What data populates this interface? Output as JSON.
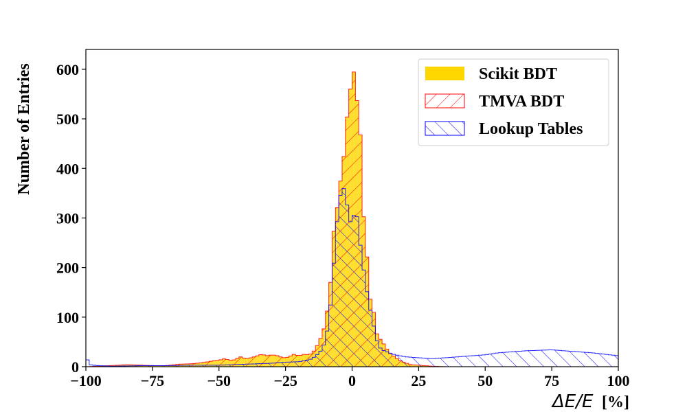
{
  "chart_data": {
    "type": "histogram",
    "xlabel_math": "ΔE/E",
    "xlabel_unit": "[%]",
    "ylabel": "Number of Entries",
    "xlim": [
      -100,
      100
    ],
    "ylim": [
      0,
      640
    ],
    "x_ticks": [
      -100,
      -75,
      -50,
      -25,
      0,
      25,
      50,
      75,
      100
    ],
    "x_tick_labels": [
      "−100",
      "−75",
      "−50",
      "−25",
      "0",
      "25",
      "50",
      "75",
      "100"
    ],
    "y_ticks": [
      0,
      100,
      200,
      300,
      400,
      500,
      600
    ],
    "y_tick_labels": [
      "0",
      "100",
      "200",
      "300",
      "400",
      "500",
      "600"
    ],
    "bin_edges_range": [
      -100,
      100
    ],
    "bin_width": 1.25,
    "legend_position": "top-right",
    "series": [
      {
        "name": "Scikit BDT",
        "style": "filled",
        "color": "#FFD700",
        "x": [
          -99.4,
          -88,
          -84,
          -74,
          -70,
          -65,
          -60,
          -55,
          -52,
          -50,
          -48,
          -45,
          -42,
          -40,
          -38,
          -36,
          -34,
          -32,
          -30,
          -28,
          -26,
          -24,
          -22,
          -20,
          -18,
          -16,
          -14,
          -12,
          -10,
          -9,
          -8,
          -7,
          -6,
          -5,
          -4,
          -3,
          -2,
          -1,
          0,
          1,
          2,
          3,
          4,
          5,
          6,
          7,
          8,
          9,
          10,
          12,
          14,
          16,
          18,
          20,
          22,
          25,
          30,
          35
        ],
        "y": [
          0,
          3,
          4,
          2,
          2,
          5,
          6,
          9,
          12,
          13,
          16,
          12,
          20,
          16,
          18,
          21,
          25,
          22,
          24,
          22,
          18,
          19,
          25,
          22,
          25,
          24,
          33,
          55,
          86,
          128,
          176,
          270,
          297,
          360,
          383,
          430,
          500,
          530,
          610,
          585,
          530,
          490,
          310,
          290,
          180,
          130,
          115,
          70,
          60,
          45,
          28,
          20,
          12,
          8,
          4,
          3,
          1,
          0
        ]
      },
      {
        "name": "TMVA BDT",
        "style": "hatched-step",
        "color": "#FF0000",
        "x": [
          -99.4,
          -88,
          -84,
          -74,
          -70,
          -65,
          -60,
          -55,
          -52,
          -50,
          -48,
          -45,
          -42,
          -40,
          -38,
          -36,
          -34,
          -32,
          -30,
          -28,
          -26,
          -24,
          -22,
          -20,
          -18,
          -16,
          -14,
          -12,
          -10,
          -9,
          -8,
          -7,
          -6,
          -5,
          -4,
          -3,
          -2,
          -1,
          0,
          1,
          2,
          3,
          4,
          5,
          6,
          7,
          8,
          9,
          10,
          12,
          14,
          16,
          18,
          20,
          22,
          25,
          30,
          35
        ],
        "y": [
          0,
          3,
          4,
          2,
          2,
          5,
          6,
          9,
          12,
          13,
          16,
          12,
          20,
          16,
          18,
          21,
          25,
          22,
          24,
          22,
          18,
          19,
          25,
          22,
          25,
          24,
          33,
          55,
          86,
          128,
          176,
          270,
          297,
          360,
          383,
          430,
          500,
          530,
          610,
          585,
          530,
          490,
          310,
          290,
          180,
          130,
          115,
          70,
          60,
          45,
          28,
          20,
          12,
          8,
          4,
          3,
          1,
          0
        ]
      },
      {
        "name": "Lookup Tables",
        "style": "hatched-step",
        "color": "#0000FF",
        "x": [
          -100,
          -99,
          -95,
          -90,
          -80,
          -70,
          -60,
          -50,
          -45,
          -40,
          -35,
          -30,
          -25,
          -20,
          -18,
          -16,
          -14,
          -12,
          -10,
          -9,
          -8,
          -7,
          -6,
          -5,
          -4,
          -3,
          -2,
          -1,
          0,
          1,
          2,
          3,
          4,
          5,
          6,
          7,
          8,
          9,
          10,
          12,
          14,
          16,
          18,
          20,
          25,
          30,
          35,
          40,
          45,
          50,
          55,
          60,
          65,
          70,
          75,
          80,
          85,
          90,
          95,
          100
        ],
        "y": [
          30,
          4,
          2,
          1,
          2,
          2,
          3,
          3,
          4,
          5,
          6,
          7,
          9,
          10,
          12,
          14,
          20,
          30,
          50,
          85,
          130,
          200,
          270,
          330,
          355,
          360,
          330,
          300,
          280,
          320,
          300,
          250,
          210,
          170,
          140,
          110,
          85,
          60,
          40,
          32,
          28,
          24,
          22,
          20,
          18,
          16,
          18,
          20,
          22,
          24,
          28,
          30,
          32,
          33,
          34,
          32,
          30,
          28,
          25,
          22
        ]
      }
    ]
  }
}
